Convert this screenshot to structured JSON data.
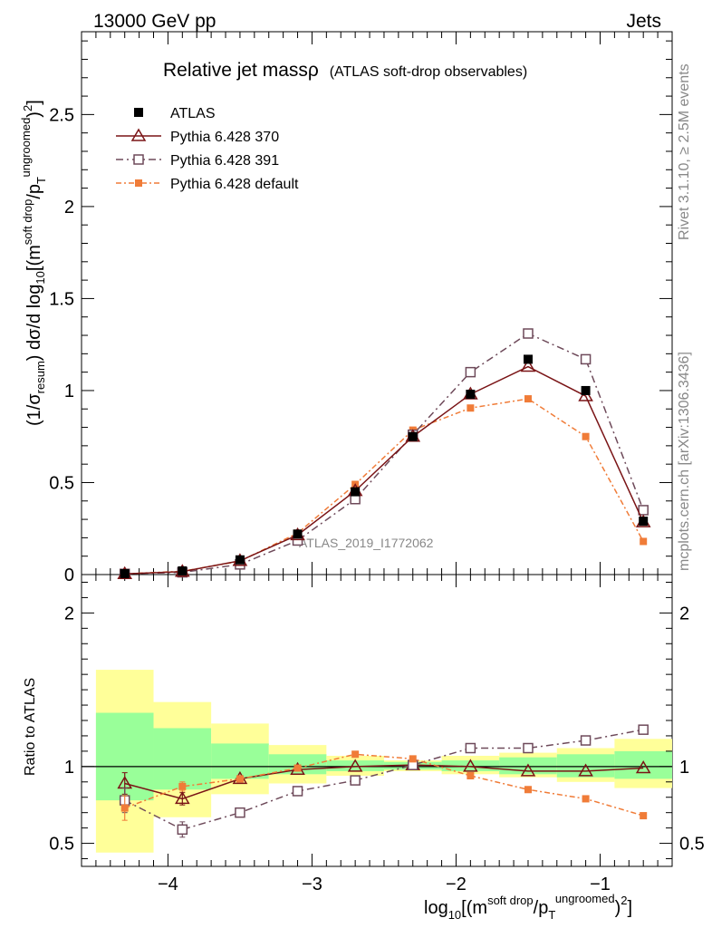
{
  "header": {
    "left": "13000 GeV pp",
    "right": "Jets"
  },
  "side_labels": {
    "rivet": "Rivet 3.1.10, ≥ 2.5M events",
    "mcplots": "mcplots.cern.ch [arXiv:1306.3436]"
  },
  "analysis_id": "ATLAS_2019_I1772062",
  "colors": {
    "atlas": "#000000",
    "p370": "#7a1416",
    "p391": "#6e4a5a",
    "pdefault": "#f07c38",
    "band_green": "#99ff99",
    "band_yellow": "#ffff99"
  },
  "chart_data": [
    {
      "type": "scatter",
      "panel": "main",
      "title": "Relative jet massρ",
      "subtitle": "(ATLAS soft-drop observables)",
      "ylabel": "(1/σresum) dσ/d log10[(m^soft drop/pT^ungroomed)^2]",
      "xlim": [
        -4.6,
        -0.5
      ],
      "ylim": [
        0,
        2.95
      ],
      "yticks": [
        0,
        0.5,
        1,
        1.5,
        2,
        2.5
      ],
      "ytick_labels": [
        "0",
        "0.5",
        "1",
        "1.5",
        "2",
        "2.5"
      ],
      "x": [
        -4.3,
        -3.9,
        -3.5,
        -3.1,
        -2.7,
        -2.3,
        -1.9,
        -1.5,
        -1.1,
        -0.7
      ],
      "series": [
        {
          "name": "ATLAS",
          "key": "atlas",
          "values": [
            0.005,
            0.02,
            0.08,
            0.22,
            0.45,
            0.75,
            0.98,
            1.17,
            1.0,
            0.29
          ]
        },
        {
          "name": "Pythia 6.428 370",
          "key": "p370",
          "values": [
            0.004,
            0.016,
            0.075,
            0.215,
            0.455,
            0.75,
            0.98,
            1.13,
            0.97,
            0.285
          ]
        },
        {
          "name": "Pythia 6.428 391",
          "key": "p391",
          "values": [
            0.004,
            0.012,
            0.055,
            0.185,
            0.41,
            0.76,
            1.1,
            1.31,
            1.17,
            0.35
          ]
        },
        {
          "name": "Pythia 6.428 default",
          "key": "pdefault",
          "values": [
            0.004,
            0.018,
            0.073,
            0.225,
            0.49,
            0.785,
            0.905,
            0.955,
            0.75,
            0.18
          ]
        }
      ]
    },
    {
      "type": "line",
      "panel": "ratio",
      "ylabel": "Ratio to ATLAS",
      "xlabel": "log10[(m^soft drop/pT^ungroomed)^2]",
      "xlim": [
        -4.6,
        -0.5
      ],
      "ylim": [
        0.35,
        2.25
      ],
      "yticks": [
        0.5,
        1,
        2
      ],
      "ytick_labels": [
        "0.5",
        "1",
        "2"
      ],
      "xticks": [
        -4,
        -3,
        -2,
        -1
      ],
      "xtick_labels": [
        "−4",
        "−3",
        "−2",
        "−1"
      ],
      "x": [
        -4.3,
        -3.9,
        -3.5,
        -3.1,
        -2.7,
        -2.3,
        -1.9,
        -1.5,
        -1.1,
        -0.7
      ],
      "bins": [
        [
          -4.5,
          -4.1
        ],
        [
          -4.1,
          -3.7
        ],
        [
          -3.7,
          -3.3
        ],
        [
          -3.3,
          -2.9
        ],
        [
          -2.9,
          -2.5
        ],
        [
          -2.5,
          -2.1
        ],
        [
          -2.1,
          -1.7
        ],
        [
          -1.7,
          -1.3
        ],
        [
          -1.3,
          -0.9
        ],
        [
          -0.9,
          -0.5
        ]
      ],
      "band_stat": [
        [
          0.78,
          1.35
        ],
        [
          0.85,
          1.25
        ],
        [
          0.92,
          1.15
        ],
        [
          0.95,
          1.08
        ],
        [
          0.97,
          1.04
        ],
        [
          0.98,
          1.03
        ],
        [
          0.97,
          1.04
        ],
        [
          0.95,
          1.06
        ],
        [
          0.93,
          1.08
        ],
        [
          0.92,
          1.1
        ]
      ],
      "band_total": [
        [
          0.44,
          1.63
        ],
        [
          0.67,
          1.42
        ],
        [
          0.82,
          1.28
        ],
        [
          0.89,
          1.14
        ],
        [
          0.94,
          1.07
        ],
        [
          0.97,
          1.04
        ],
        [
          0.95,
          1.07
        ],
        [
          0.93,
          1.09
        ],
        [
          0.9,
          1.12
        ],
        [
          0.86,
          1.18
        ]
      ],
      "series": [
        {
          "name": "Pythia 6.428 370",
          "key": "p370",
          "values": [
            0.89,
            0.79,
            0.92,
            0.98,
            1.0,
            1.01,
            1.0,
            0.97,
            0.97,
            0.99
          ],
          "errors": [
            0.07,
            0.04,
            0,
            0,
            0,
            0,
            0,
            0,
            0,
            0
          ]
        },
        {
          "name": "Pythia 6.428 391",
          "key": "p391",
          "values": [
            0.78,
            0.59,
            0.7,
            0.84,
            0.91,
            1.01,
            1.12,
            1.12,
            1.17,
            1.24
          ],
          "errors": [
            0.08,
            0.05,
            0.02,
            0,
            0,
            0,
            0,
            0,
            0,
            0
          ]
        },
        {
          "name": "Pythia 6.428 default",
          "key": "pdefault",
          "values": [
            0.73,
            0.87,
            0.92,
            0.99,
            1.08,
            1.05,
            0.94,
            0.85,
            0.79,
            0.68
          ],
          "errors": [
            0.08,
            0.03,
            0.02,
            0,
            0,
            0,
            0,
            0,
            0,
            0
          ]
        }
      ]
    }
  ]
}
